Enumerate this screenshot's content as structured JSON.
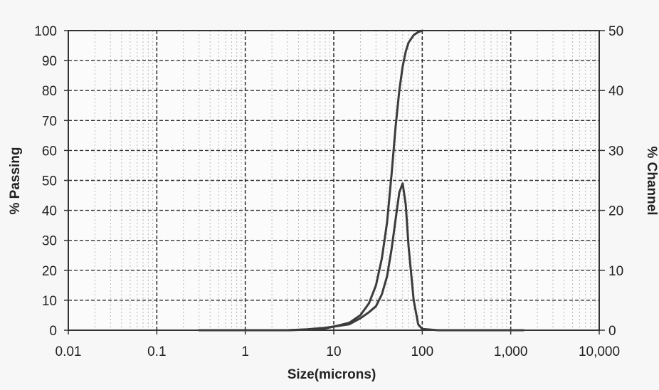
{
  "chart_data": {
    "type": "line",
    "title": "",
    "xlabel": "Size(microns)",
    "ylabel_left": "% Passing",
    "ylabel_right": "% Channel",
    "x_scale": "log",
    "xlim": [
      0.01,
      10000
    ],
    "ylim_left": [
      0,
      100
    ],
    "ylim_right": [
      0,
      50
    ],
    "grid": true,
    "x_tick_labels": [
      "0.01",
      "0.1",
      "1",
      "10",
      "100",
      "1,000",
      "10,000"
    ],
    "x_tick_values": [
      0.01,
      0.1,
      1,
      10,
      100,
      1000,
      10000
    ],
    "y_left_tick_labels": [
      "0",
      "10",
      "20",
      "30",
      "40",
      "50",
      "60",
      "70",
      "80",
      "90",
      "100"
    ],
    "y_left_tick_values": [
      0,
      10,
      20,
      30,
      40,
      50,
      60,
      70,
      80,
      90,
      100
    ],
    "y_right_tick_labels": [
      "0",
      "10",
      "20",
      "30",
      "40",
      "50"
    ],
    "y_right_tick_values": [
      0,
      10,
      20,
      30,
      40,
      50
    ],
    "series": [
      {
        "axis": "left",
        "x": [
          0.3,
          1,
          3,
          5,
          8,
          10,
          15,
          20,
          25,
          30,
          35,
          40,
          45,
          50,
          55,
          60,
          65,
          70,
          80,
          90,
          100
        ],
        "y": [
          0,
          0,
          0,
          0.3,
          0.8,
          1.2,
          2.5,
          5,
          9,
          15,
          24,
          36,
          52,
          68,
          80,
          88,
          93,
          96,
          98.5,
          99.5,
          100
        ]
      },
      {
        "axis": "right",
        "x": [
          0.3,
          1,
          3,
          5,
          8,
          10,
          15,
          20,
          25,
          30,
          35,
          40,
          45,
          50,
          55,
          60,
          65,
          70,
          80,
          90,
          100,
          150,
          1000,
          1400
        ],
        "y": [
          0,
          0,
          0,
          0.1,
          0.3,
          0.6,
          1.0,
          2.0,
          3.0,
          4.0,
          6.0,
          9.0,
          13.5,
          18.5,
          23.0,
          24.5,
          21.0,
          14.0,
          5.0,
          1.0,
          0.2,
          0,
          0,
          0
        ]
      }
    ]
  }
}
